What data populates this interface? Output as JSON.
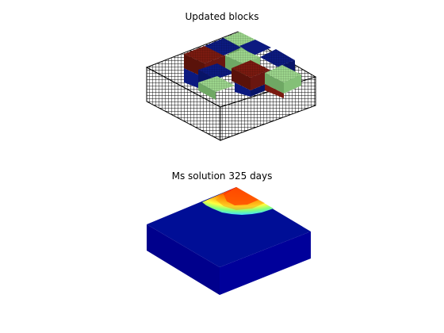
{
  "figure": {
    "top_panel": {
      "title": "Updated blocks"
    },
    "bottom_panel": {
      "title": "Ms solution 325 days"
    }
  },
  "colors": {
    "background": "#ffffff",
    "mesh_line": "#000000",
    "block_red": "#7a1a10",
    "block_blue": "#0c1a80",
    "block_green": "#9cd58c",
    "solution_base": "#000e96",
    "solution_side": "#00008c",
    "hot_red": "#ff1a00",
    "hot_orange": "#ff8c00",
    "hot_yellow": "#ffff40",
    "cool_cyan": "#40e0ff"
  }
}
